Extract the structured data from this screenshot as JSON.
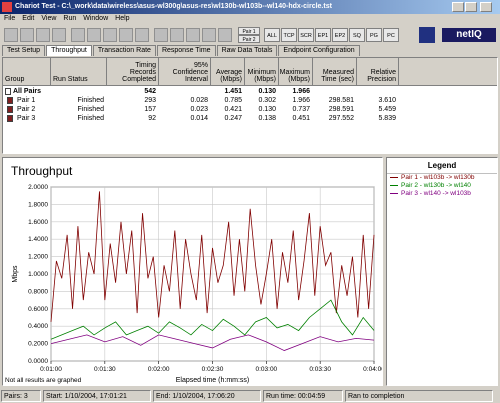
{
  "window": {
    "title": "Chariot Test - C:\\_work\\data\\wireless\\asus-wl300g\\asus-res\\wl130b-wl103b--wl140-hdx-circle.tst"
  },
  "menu": [
    "File",
    "Edit",
    "View",
    "Run",
    "Window",
    "Help"
  ],
  "toolbar": {
    "buttons": [
      "Pair 1",
      "Pair 2",
      "ALL",
      "TCP",
      "SCR",
      "EP1",
      "EP2",
      "SQ",
      "PG",
      "PC"
    ],
    "logo": "netIQ"
  },
  "tabs": [
    "Test Setup",
    "Throughput",
    "Transaction Rate",
    "Response Time",
    "Raw Data Totals",
    "Endpoint Configuration"
  ],
  "table": {
    "columns": [
      "Group",
      "Run Status",
      "Timing Records Completed",
      "95% Confidence Interval",
      "Average (Mbps)",
      "Minimum (Mbps)",
      "Maximum (Mbps)",
      "Measured Time (sec)",
      "Relative Precision"
    ],
    "rows": [
      {
        "group": "All Pairs",
        "records": "542",
        "average": "1.451",
        "minimum": "0.130",
        "maximum": "1.966"
      },
      {
        "group": "Pair 1",
        "status": "Finished",
        "records": "293",
        "confidence": "0.028",
        "average": "0.785",
        "minimum": "0.302",
        "maximum": "1.966",
        "time": "298.581",
        "precision": "3.610"
      },
      {
        "group": "Pair 2",
        "status": "Finished",
        "records": "157",
        "confidence": "0.023",
        "average": "0.421",
        "minimum": "0.130",
        "maximum": "0.737",
        "time": "298.591",
        "precision": "5.459"
      },
      {
        "group": "Pair 3",
        "status": "Finished",
        "records": "92",
        "confidence": "0.014",
        "average": "0.247",
        "minimum": "0.138",
        "maximum": "0.451",
        "time": "297.552",
        "precision": "5.839"
      }
    ]
  },
  "chart_data": {
    "type": "line",
    "title": "Throughput",
    "x_label": "Elapsed time (h:mm:ss)",
    "y_label": "Mbps",
    "legend_title": "Legend",
    "note": "Not all results are graphed",
    "xlim": [
      60,
      240
    ],
    "ylim": [
      0,
      2
    ],
    "grid": true,
    "xticks": [
      {
        "value": 60,
        "label": "0:01:00"
      },
      {
        "value": 90,
        "label": "0:01:30"
      },
      {
        "value": 120,
        "label": "0:02:00"
      },
      {
        "value": 150,
        "label": "0:02:30"
      },
      {
        "value": 180,
        "label": "0:03:00"
      },
      {
        "value": 210,
        "label": "0:03:30"
      },
      {
        "value": 240,
        "label": "0:04:00"
      }
    ],
    "yticks": [
      {
        "value": 0,
        "label": "0.0000"
      },
      {
        "value": 0.2,
        "label": "0.2000"
      },
      {
        "value": 0.4,
        "label": "0.4000"
      },
      {
        "value": 0.6,
        "label": "0.6000"
      },
      {
        "value": 0.8,
        "label": "0.8000"
      },
      {
        "value": 1,
        "label": "1.0000"
      },
      {
        "value": 1.2,
        "label": "1.2000"
      },
      {
        "value": 1.4,
        "label": "1.4000"
      },
      {
        "value": 1.6,
        "label": "1.6000"
      },
      {
        "value": 1.8,
        "label": "1.8000"
      },
      {
        "value": 2,
        "label": "2.0000"
      }
    ],
    "series": [
      {
        "name": "Pair 1 - wl103b -> wl130b",
        "color": "#800000",
        "x": [
          60,
          63,
          66,
          69,
          72,
          75,
          78,
          81,
          84,
          87,
          90,
          93,
          96,
          99,
          102,
          105,
          108,
          111,
          114,
          117,
          120,
          123,
          126,
          129,
          132,
          135,
          138,
          141,
          144,
          147,
          150,
          153,
          156,
          159,
          162,
          165,
          168,
          171,
          174,
          177,
          180,
          183,
          186,
          189,
          192,
          195,
          198,
          201,
          204,
          207,
          210,
          213,
          216,
          219,
          222,
          225,
          228,
          231,
          234,
          237,
          240
        ],
        "values": [
          0.45,
          1.15,
          0.95,
          1.45,
          0.6,
          1.55,
          0.7,
          1.25,
          1.0,
          1.95,
          0.7,
          1.35,
          0.9,
          1.6,
          1.0,
          1.5,
          0.55,
          1.7,
          0.95,
          1.2,
          0.5,
          1.1,
          0.8,
          1.5,
          0.6,
          1.4,
          1.0,
          0.7,
          1.45,
          0.55,
          1.3,
          0.9,
          1.1,
          1.6,
          0.75,
          1.4,
          0.8,
          1.75,
          1.1,
          0.65,
          1.0,
          1.4,
          0.6,
          1.25,
          0.9,
          1.5,
          0.7,
          1.15,
          1.7,
          0.75,
          1.55,
          1.1,
          1.25,
          0.55,
          1.1,
          0.75,
          1.2,
          0.5,
          1.45,
          0.6,
          1.45
        ]
      },
      {
        "name": "Pair 2 - wl130b -> wl140",
        "color": "#008000",
        "x": [
          60,
          66,
          72,
          78,
          84,
          90,
          96,
          102,
          108,
          114,
          120,
          126,
          132,
          138,
          144,
          150,
          156,
          162,
          168,
          174,
          180,
          186,
          192,
          198,
          204,
          210,
          216,
          222,
          228,
          234,
          240
        ],
        "values": [
          0.25,
          0.3,
          0.35,
          0.4,
          0.3,
          0.38,
          0.45,
          0.3,
          0.35,
          0.4,
          0.32,
          0.45,
          0.38,
          0.3,
          0.42,
          0.35,
          0.48,
          0.4,
          0.3,
          0.45,
          0.5,
          0.38,
          0.42,
          0.35,
          0.5,
          0.6,
          0.7,
          0.45,
          0.3,
          0.5,
          0.35
        ]
      },
      {
        "name": "Pair 3 - wl140 -> wl103b",
        "color": "#800080",
        "x": [
          60,
          70,
          80,
          90,
          100,
          110,
          120,
          130,
          140,
          150,
          160,
          170,
          180,
          190,
          200,
          210,
          220,
          230,
          240
        ],
        "values": [
          0.2,
          0.25,
          0.3,
          0.22,
          0.28,
          0.18,
          0.3,
          0.25,
          0.2,
          0.15,
          0.25,
          0.3,
          0.22,
          0.12,
          0.2,
          0.28,
          0.22,
          0.26,
          0.24
        ]
      }
    ]
  },
  "status_bar": [
    "Pairs: 3",
    "Start: 1/10/2004, 17:01:21",
    "End: 1/10/2004, 17:06:20",
    "Run time: 00:04:59",
    "Ran to completion"
  ]
}
